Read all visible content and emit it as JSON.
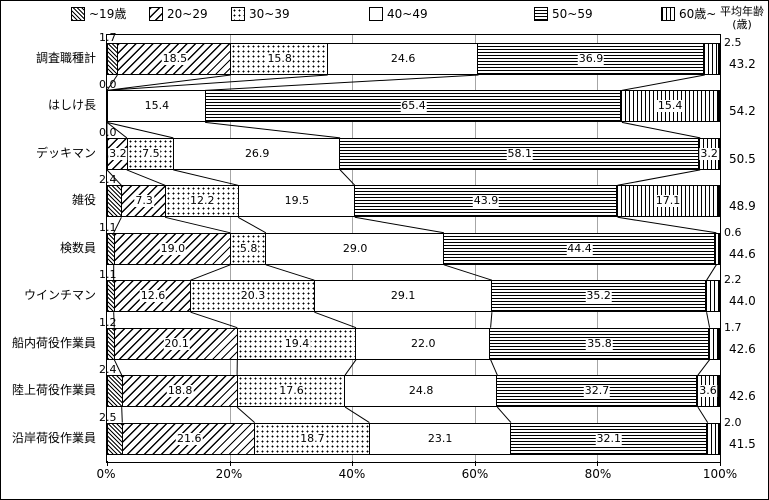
{
  "legend": {
    "items": [
      {
        "label": "~19歳",
        "pattern": "fine-diagonal-hatch"
      },
      {
        "label": "20~29",
        "pattern": "diagonal-hatch"
      },
      {
        "label": "30~39",
        "pattern": "dots"
      },
      {
        "label": "40~49",
        "pattern": "plain-white"
      },
      {
        "label": "50~59",
        "pattern": "horizontal-lines"
      },
      {
        "label": "60歳~",
        "pattern": "vertical-lines"
      }
    ],
    "avg_header": [
      "平均年齢",
      "(歳)"
    ]
  },
  "axis": {
    "ticks": [
      "0%",
      "20%",
      "40%",
      "60%",
      "80%",
      "100%"
    ]
  },
  "chart_data": {
    "type": "bar",
    "stacked": true,
    "orientation": "horizontal",
    "unit": "%",
    "xlim": [
      0,
      100
    ],
    "gridlines": true,
    "series": [
      "~19歳",
      "20~29",
      "30~39",
      "40~49",
      "50~59",
      "60歳~"
    ],
    "value_column_header": "平均年齢(歳)",
    "rows": [
      {
        "category": "調査職種計",
        "values": [
          1.7,
          18.5,
          15.8,
          24.6,
          36.9,
          2.5
        ],
        "average_age": 43.2
      },
      {
        "category": "はしけ長",
        "values": [
          0.0,
          0.0,
          0.0,
          15.4,
          65.4,
          15.4
        ],
        "average_age": 54.2
      },
      {
        "category": "デッキマン",
        "values": [
          0.0,
          3.2,
          7.5,
          26.9,
          58.1,
          3.2
        ],
        "average_age": 50.5
      },
      {
        "category": "雑役",
        "values": [
          2.4,
          7.3,
          12.2,
          19.5,
          43.9,
          17.1
        ],
        "average_age": 48.9
      },
      {
        "category": "検数員",
        "values": [
          1.1,
          19.0,
          5.8,
          29.0,
          44.4,
          0.6
        ],
        "average_age": 44.6
      },
      {
        "category": "ウインチマン",
        "values": [
          1.1,
          12.6,
          20.3,
          29.1,
          35.2,
          2.2
        ],
        "average_age": 44.0
      },
      {
        "category": "船内荷役作業員",
        "values": [
          1.2,
          20.1,
          19.4,
          22.0,
          35.8,
          1.7
        ],
        "average_age": 42.6
      },
      {
        "category": "陸上荷役作業員",
        "values": [
          2.4,
          18.8,
          17.6,
          24.8,
          32.7,
          3.6
        ],
        "average_age": 42.6
      },
      {
        "category": "沿岸荷役作業員",
        "values": [
          2.5,
          21.6,
          18.7,
          23.1,
          32.1,
          2.0
        ],
        "average_age": 41.5
      }
    ]
  }
}
